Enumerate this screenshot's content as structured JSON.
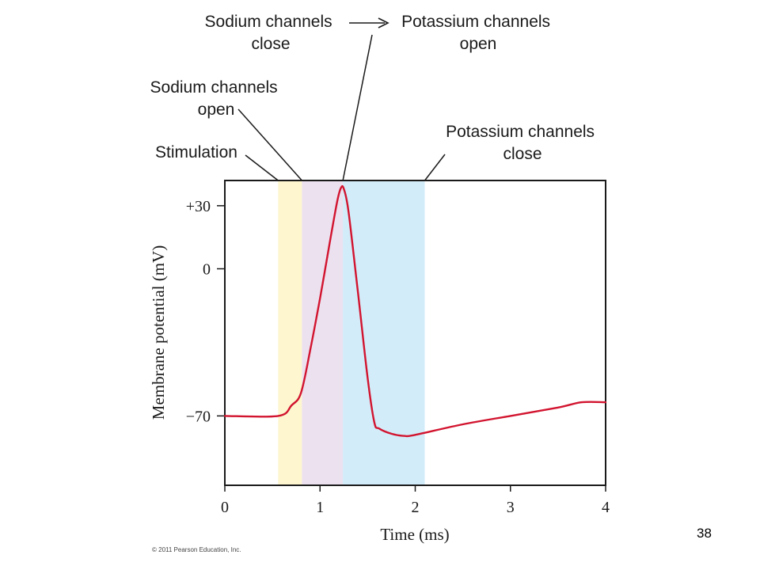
{
  "chart_data": {
    "type": "line",
    "xlabel": "Time (ms)",
    "ylabel": "Membrane potential (mV)",
    "xlim": [
      0,
      4
    ],
    "ylim": [
      -103,
      42
    ],
    "x_ticks": [
      {
        "value": 0,
        "label": "0"
      },
      {
        "value": 1,
        "label": "1"
      },
      {
        "value": 2,
        "label": "2"
      },
      {
        "value": 3,
        "label": "3"
      },
      {
        "value": 4,
        "label": "4"
      }
    ],
    "y_ticks": [
      {
        "value": 30,
        "label": "+30"
      },
      {
        "value": 0,
        "label": "0"
      },
      {
        "value": -70,
        "label": "−70"
      }
    ],
    "phases": [
      {
        "x0": 0.56,
        "x1": 0.81,
        "color": "#fdf6cf"
      },
      {
        "x0": 0.81,
        "x1": 1.24,
        "color": "#ece1ef"
      },
      {
        "x0": 1.24,
        "x1": 2.1,
        "color": "#d3ecf9"
      }
    ],
    "series": [
      {
        "color": "#d2142f",
        "points": [
          [
            0,
            -70
          ],
          [
            0.56,
            -70
          ],
          [
            0.7,
            -65
          ],
          [
            0.8,
            -59
          ],
          [
            0.9,
            -38
          ],
          [
            1.0,
            -14
          ],
          [
            1.1,
            12
          ],
          [
            1.18,
            32
          ],
          [
            1.22,
            38.5
          ],
          [
            1.25,
            38
          ],
          [
            1.3,
            27
          ],
          [
            1.4,
            -12
          ],
          [
            1.5,
            -52
          ],
          [
            1.57,
            -73
          ],
          [
            1.62,
            -76
          ],
          [
            1.75,
            -78.5
          ],
          [
            1.88,
            -79.5
          ],
          [
            2.0,
            -79
          ],
          [
            2.5,
            -74
          ],
          [
            3.0,
            -70
          ],
          [
            3.5,
            -66
          ],
          [
            3.75,
            -63.5
          ],
          [
            4.0,
            -63.5
          ]
        ]
      }
    ],
    "annotations": [
      {
        "lines": [
          "Stimulation"
        ],
        "target_x": 0.56
      },
      {
        "lines": [
          "Sodium channels",
          "open"
        ],
        "target_x": 0.81
      },
      {
        "lines": [
          "Sodium channels",
          "close"
        ],
        "target_x": 1.24
      },
      {
        "lines": [
          "Potassium channels",
          "open"
        ],
        "target_x": 1.24
      },
      {
        "lines": [
          "Potassium channels",
          "close"
        ],
        "target_x": 2.1
      }
    ]
  },
  "copyright": "© 2011 Pearson Education, Inc.",
  "page_number": "38"
}
